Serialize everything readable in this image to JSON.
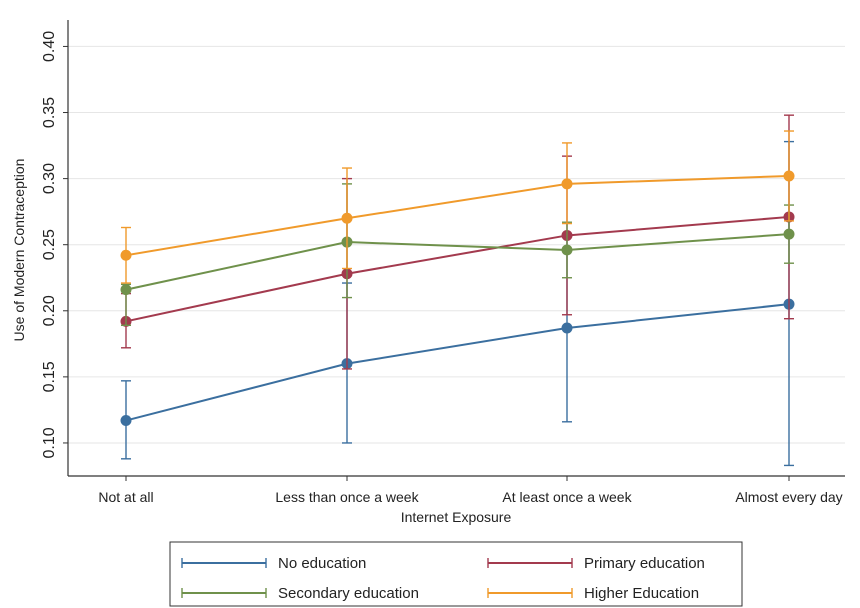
{
  "chart_data": {
    "type": "line",
    "title": "",
    "xlabel": "Internet Exposure",
    "ylabel": "Use of Modern Contraception",
    "categories": [
      "Not at all",
      "Less than once a week",
      "At least once a week",
      "Almost every day"
    ],
    "yticks": [
      "0.10",
      "0.15",
      "0.20",
      "0.25",
      "0.30",
      "0.35",
      "0.40"
    ],
    "ylim": [
      0.075,
      0.42
    ],
    "grid": true,
    "legend_position": "bottom",
    "series": [
      {
        "name": "No education",
        "color": "#3b6f9f",
        "values": [
          0.117,
          0.16,
          0.187,
          0.205
        ],
        "ci_low": [
          0.088,
          0.1,
          0.116,
          0.083
        ],
        "ci_high": [
          0.147,
          0.221,
          0.258,
          0.328
        ]
      },
      {
        "name": "Primary education",
        "color": "#a33a4e",
        "values": [
          0.192,
          0.228,
          0.257,
          0.271
        ],
        "ci_low": [
          0.172,
          0.156,
          0.197,
          0.194
        ],
        "ci_high": [
          0.213,
          0.3,
          0.317,
          0.348
        ]
      },
      {
        "name": "Secondary education",
        "color": "#6f914b",
        "values": [
          0.216,
          0.252,
          0.246,
          0.258
        ],
        "ci_low": [
          0.189,
          0.21,
          0.225,
          0.236
        ],
        "ci_high": [
          0.22,
          0.296,
          0.267,
          0.28
        ]
      },
      {
        "name": "Higher Education",
        "color": "#f09a2b",
        "values": [
          0.242,
          0.27,
          0.296,
          0.302
        ],
        "ci_low": [
          0.221,
          0.232,
          0.266,
          0.268
        ],
        "ci_high": [
          0.263,
          0.308,
          0.327,
          0.336
        ]
      }
    ]
  }
}
